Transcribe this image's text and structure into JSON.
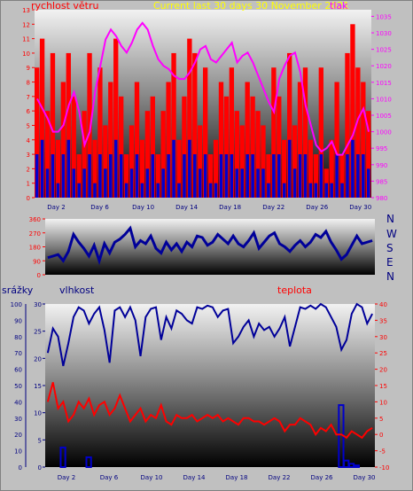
{
  "header": {
    "left": "rychlost větru",
    "center": "Current last 30 days 30 November 2021",
    "right": "tlak"
  },
  "directions": [
    "N",
    "W",
    "S",
    "E",
    "N"
  ],
  "labels": {
    "srazky": "srážky",
    "vlhkost": "vlhkost",
    "teplota": "teplota"
  },
  "colors": {
    "wind": "#ff0000",
    "gust": "#0000cc",
    "pressure": "#ff00ff",
    "direction": "#000099",
    "humidity": "#000099",
    "temperature": "#ff0000",
    "rain": "#0000cc"
  },
  "chart_data": [
    {
      "type": "area",
      "x_tick_labels": [
        "Day 2",
        "Day 6",
        "Day 10",
        "Day 14",
        "Day 18",
        "Day 22",
        "Day 26",
        "Day 30"
      ],
      "left_ticks": [
        "0",
        "1",
        "2",
        "3",
        "4",
        "5",
        "6",
        "7",
        "8",
        "9",
        "10",
        "11",
        "12",
        "13"
      ],
      "right_ticks": [
        "980",
        "985",
        "990",
        "995",
        "1000",
        "1005",
        "1010",
        "1015",
        "1020",
        "1025",
        "1030",
        "1035"
      ],
      "ylim_left": [
        0,
        13
      ],
      "ylim_right": [
        980,
        1037
      ],
      "series": [
        {
          "name": "rychlost větru",
          "axis": "left",
          "values": [
            9,
            11,
            6,
            10,
            4,
            8,
            10,
            7,
            3,
            6,
            10,
            4,
            9,
            5,
            8,
            11,
            7,
            3,
            5,
            8,
            4,
            6,
            7,
            3,
            6,
            8,
            10,
            4,
            7,
            11,
            10,
            5,
            9,
            3,
            4,
            8,
            7,
            9,
            6,
            5,
            8,
            7,
            6,
            5,
            3,
            9,
            7,
            4,
            10,
            5,
            8,
            9,
            4,
            3,
            9,
            2,
            4,
            8,
            3,
            10,
            12,
            9,
            8,
            6
          ]
        },
        {
          "name": "tlak",
          "axis": "right",
          "values": [
            1010,
            1007,
            1004,
            1000,
            1000,
            1002,
            1008,
            1012,
            1006,
            996,
            1000,
            1012,
            1020,
            1028,
            1031,
            1029,
            1026,
            1024,
            1027,
            1031,
            1033,
            1031,
            1026,
            1022,
            1020,
            1019,
            1017,
            1016,
            1016,
            1018,
            1021,
            1025,
            1026,
            1022,
            1021,
            1023,
            1025,
            1027,
            1021,
            1023,
            1024,
            1021,
            1017,
            1013,
            1009,
            1006,
            1016,
            1020,
            1023,
            1024,
            1018,
            1008,
            1002,
            996,
            994,
            995,
            997,
            993,
            993,
            996,
            999,
            1004,
            1007,
            1000
          ]
        },
        {
          "axis": "left",
          "values": [
            3,
            4,
            2,
            3,
            1,
            3,
            4,
            2,
            1,
            2,
            3,
            1,
            3,
            2,
            3,
            4,
            3,
            1,
            2,
            3,
            1,
            2,
            3,
            1,
            2,
            3,
            4,
            1,
            3,
            4,
            3,
            2,
            3,
            1,
            1,
            3,
            3,
            3,
            2,
            2,
            3,
            3,
            2,
            2,
            1,
            3,
            3,
            1,
            4,
            2,
            3,
            3,
            1,
            1,
            3,
            1,
            1,
            3,
            1,
            3,
            4,
            3,
            3,
            2
          ]
        }
      ]
    },
    {
      "type": "line",
      "y_ticks": [
        "0",
        "90",
        "180",
        "270",
        "360"
      ],
      "ylim": [
        0,
        360
      ],
      "series": [
        {
          "values": [
            110,
            120,
            130,
            90,
            150,
            260,
            210,
            170,
            120,
            190,
            90,
            200,
            140,
            210,
            230,
            260,
            300,
            180,
            220,
            200,
            250,
            170,
            140,
            210,
            160,
            200,
            150,
            210,
            180,
            250,
            240,
            190,
            210,
            260,
            230,
            200,
            250,
            200,
            180,
            220,
            270,
            170,
            210,
            250,
            270,
            200,
            180,
            150,
            190,
            220,
            180,
            210,
            260,
            240,
            280,
            210,
            160,
            100,
            130,
            190,
            250,
            200,
            210,
            220
          ]
        }
      ]
    },
    {
      "type": "line",
      "x_tick_labels": [
        "Day 2",
        "Day 6",
        "Day 10",
        "Day 14",
        "Day 18",
        "Day 22",
        "Day 26",
        "Day 30"
      ],
      "left_ticks": [
        "0",
        "10",
        "20",
        "30",
        "40",
        "50",
        "60",
        "70",
        "80",
        "90",
        "100"
      ],
      "left2_ticks": [
        "0",
        "5",
        "10",
        "15",
        "20",
        "25",
        "30"
      ],
      "right_ticks": [
        "-10",
        "-5",
        "0",
        "5",
        "10",
        "15",
        "20",
        "25",
        "30",
        "35",
        "40"
      ],
      "ylim_left": [
        0,
        100
      ],
      "ylim_right": [
        -10,
        40
      ],
      "series": [
        {
          "name": "vlhkost",
          "axis": "left",
          "values": [
            70,
            85,
            80,
            62,
            76,
            92,
            98,
            96,
            88,
            94,
            98,
            84,
            64,
            96,
            98,
            92,
            98,
            90,
            68,
            92,
            97,
            98,
            78,
            92,
            85,
            96,
            94,
            90,
            88,
            98,
            97,
            99,
            98,
            92,
            96,
            97,
            76,
            80,
            86,
            90,
            80,
            88,
            84,
            86,
            80,
            85,
            92,
            74,
            86,
            98,
            97,
            99,
            97,
            100,
            98,
            92,
            86,
            72,
            78,
            94,
            100,
            98,
            88,
            94
          ]
        },
        {
          "name": "teplota",
          "axis": "right",
          "values": [
            10,
            16,
            8,
            10,
            4,
            6,
            10,
            8,
            11,
            6,
            9,
            10,
            6,
            8,
            12,
            8,
            4,
            6,
            8,
            4,
            6,
            5,
            9,
            4,
            3,
            6,
            5,
            5,
            6,
            4,
            5,
            6,
            5,
            6,
            4,
            5,
            4,
            3,
            5,
            5,
            4,
            4,
            3,
            4,
            5,
            4,
            1,
            3,
            3,
            5,
            4,
            3,
            0,
            2,
            1,
            3,
            0,
            0,
            -1,
            1,
            0,
            -1,
            1,
            2
          ]
        },
        {
          "name": "srážky",
          "axis": "left",
          "values": [
            0,
            0,
            0,
            12,
            0,
            0,
            0,
            0,
            6,
            0,
            0,
            0,
            0,
            0,
            0,
            0,
            0,
            0,
            0,
            0,
            0,
            0,
            0,
            0,
            0,
            0,
            0,
            0,
            0,
            0,
            0,
            0,
            0,
            0,
            0,
            0,
            0,
            0,
            0,
            0,
            0,
            0,
            0,
            0,
            0,
            0,
            0,
            0,
            0,
            0,
            0,
            0,
            0,
            0,
            0,
            0,
            0,
            38,
            4,
            2,
            1,
            0,
            0,
            0
          ]
        }
      ]
    }
  ]
}
